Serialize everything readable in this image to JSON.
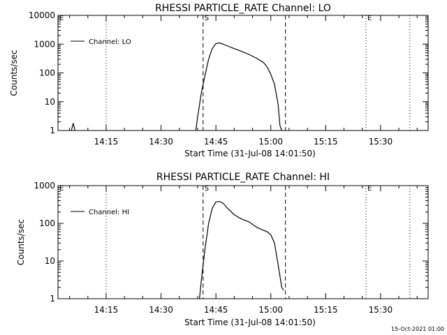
{
  "footer_timestamp": "15-Oct-2021 01:00",
  "chart_data": [
    {
      "type": "line",
      "title": "RHESSI PARTICLE_RATE Channel: LO",
      "xlabel": "Start Time (31-Jul-08 14:01:50)",
      "ylabel": "Counts/sec",
      "y_scale": "log",
      "xlim": [
        "14:01:50",
        "15:43:00"
      ],
      "ylim": [
        1,
        10000
      ],
      "x_ticks": [
        "14:15",
        "14:30",
        "14:45",
        "15:00",
        "15:15",
        "15:30"
      ],
      "y_ticks": [
        {
          "value": 1,
          "label": "1"
        },
        {
          "value": 10,
          "label": "10"
        },
        {
          "value": 100,
          "label": "100"
        },
        {
          "value": 1000,
          "label": "1000"
        },
        {
          "value": 10000,
          "label": "10000"
        }
      ],
      "legend": {
        "position": "top-left",
        "label": "Channel: LO"
      },
      "markers": [
        {
          "time": "14:01:50",
          "style": "dotted",
          "label": "E"
        },
        {
          "time": "14:15:00",
          "style": "dotted",
          "label": ""
        },
        {
          "time": "14:41:30",
          "style": "dashed",
          "label": "S"
        },
        {
          "time": "15:04:00",
          "style": "dashed",
          "label": ""
        },
        {
          "time": "15:26:00",
          "style": "dotted",
          "label": "E"
        },
        {
          "time": "15:38:00",
          "style": "dotted",
          "label": ""
        }
      ],
      "series": [
        {
          "color": "#000000",
          "segments": [
            [
              {
                "t": "14:05:30",
                "y": 1
              },
              {
                "t": "14:06:00",
                "y": 1.8
              },
              {
                "t": "14:06:30",
                "y": 1
              }
            ],
            [
              {
                "t": "14:39:30",
                "y": 1
              },
              {
                "t": "14:40:00",
                "y": 3
              },
              {
                "t": "14:41:00",
                "y": 20
              },
              {
                "t": "14:42:00",
                "y": 80
              },
              {
                "t": "14:43:00",
                "y": 300
              },
              {
                "t": "14:44:00",
                "y": 700
              },
              {
                "t": "14:45:00",
                "y": 1050
              },
              {
                "t": "14:46:00",
                "y": 1100
              },
              {
                "t": "14:47:00",
                "y": 1000
              },
              {
                "t": "14:48:00",
                "y": 880
              },
              {
                "t": "14:50:00",
                "y": 700
              },
              {
                "t": "14:52:00",
                "y": 560
              },
              {
                "t": "14:54:00",
                "y": 440
              },
              {
                "t": "14:56:00",
                "y": 330
              },
              {
                "t": "14:58:00",
                "y": 230
              },
              {
                "t": "14:59:00",
                "y": 160
              },
              {
                "t": "15:00:00",
                "y": 90
              },
              {
                "t": "15:01:00",
                "y": 40
              },
              {
                "t": "15:02:00",
                "y": 8
              },
              {
                "t": "15:02:30",
                "y": 1.5
              },
              {
                "t": "15:03:00",
                "y": 1
              }
            ]
          ]
        }
      ]
    },
    {
      "type": "line",
      "title": "RHESSI PARTICLE_RATE Channel: HI",
      "xlabel": "Start Time (31-Jul-08 14:01:50)",
      "ylabel": "Counts/sec",
      "y_scale": "log",
      "xlim": [
        "14:01:50",
        "15:43:00"
      ],
      "ylim": [
        1,
        1000
      ],
      "x_ticks": [
        "14:15",
        "14:30",
        "14:45",
        "15:00",
        "15:15",
        "15:30"
      ],
      "y_ticks": [
        {
          "value": 1,
          "label": "1"
        },
        {
          "value": 10,
          "label": "10"
        },
        {
          "value": 100,
          "label": "100"
        },
        {
          "value": 1000,
          "label": "1000"
        }
      ],
      "legend": {
        "position": "top-left",
        "label": "Channel: HI"
      },
      "markers": [
        {
          "time": "14:01:50",
          "style": "dotted",
          "label": "E"
        },
        {
          "time": "14:15:00",
          "style": "dotted",
          "label": ""
        },
        {
          "time": "14:41:30",
          "style": "dashed",
          "label": "S"
        },
        {
          "time": "15:04:00",
          "style": "dashed",
          "label": ""
        },
        {
          "time": "15:26:00",
          "style": "dotted",
          "label": "E"
        },
        {
          "time": "15:38:00",
          "style": "dotted",
          "label": ""
        }
      ],
      "series": [
        {
          "color": "#000000",
          "segments": [
            [
              {
                "t": "14:40:30",
                "y": 1
              },
              {
                "t": "14:41:00",
                "y": 3
              },
              {
                "t": "14:42:00",
                "y": 20
              },
              {
                "t": "14:43:00",
                "y": 100
              },
              {
                "t": "14:44:00",
                "y": 250
              },
              {
                "t": "14:45:00",
                "y": 370
              },
              {
                "t": "14:46:00",
                "y": 380
              },
              {
                "t": "14:47:00",
                "y": 340
              },
              {
                "t": "14:48:00",
                "y": 260
              },
              {
                "t": "14:50:00",
                "y": 170
              },
              {
                "t": "14:52:00",
                "y": 130
              },
              {
                "t": "14:54:00",
                "y": 110
              },
              {
                "t": "14:56:00",
                "y": 80
              },
              {
                "t": "14:58:00",
                "y": 65
              },
              {
                "t": "14:59:00",
                "y": 60
              },
              {
                "t": "15:00:00",
                "y": 50
              },
              {
                "t": "15:01:00",
                "y": 30
              },
              {
                "t": "15:02:00",
                "y": 8
              },
              {
                "t": "15:03:00",
                "y": 2
              },
              {
                "t": "15:03:30",
                "y": 1.7
              }
            ]
          ]
        }
      ]
    }
  ]
}
